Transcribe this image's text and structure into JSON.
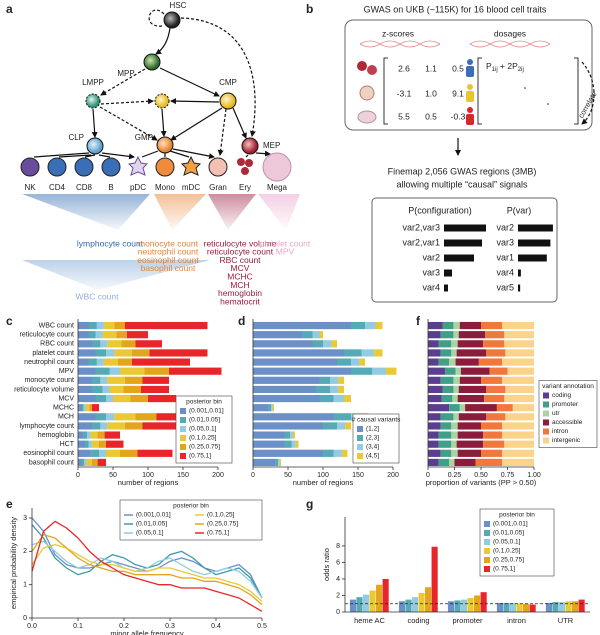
{
  "panel_labels": [
    "a",
    "b",
    "c",
    "d",
    "e",
    "f",
    "g"
  ],
  "panel_a": {
    "progenitors": [
      "HSC",
      "MPP",
      "LMPP",
      "CMP",
      "CLP",
      "GMP",
      "MEP"
    ],
    "cells": [
      "NK",
      "CD4",
      "CD8",
      "B",
      "pDC",
      "Mono",
      "mDC",
      "Gran",
      "Ery",
      "Mega"
    ],
    "trait_groups": [
      {
        "color": "#2e6ab3",
        "traits": [
          "lymphocyte count"
        ]
      },
      {
        "color": "#e8822f",
        "traits": [
          "monocyte count",
          "neutrophil count",
          "eosinophil count",
          "basophil count"
        ]
      },
      {
        "color": "#9b1b3c",
        "traits": [
          "reticulocyte volume",
          "reticulocyte count",
          "RBC count",
          "MCV",
          "MCHC",
          "MCH",
          "hemoglobin",
          "hematocrit"
        ]
      },
      {
        "color": "#e8a6cc",
        "traits": [
          "platelet count",
          "MPV"
        ]
      }
    ],
    "wbc_label": "WBC count",
    "wbc_color": "#8fb0d8"
  },
  "panel_b": {
    "title": "GWAS on UKB (~115K) for 16 blood cell traits",
    "zscore_header": "z-scores",
    "dosage_header": "dosages",
    "zscores": [
      [
        "2.6",
        "1.1",
        "0.5"
      ],
      [
        "-3.1",
        "1.0",
        "9.1"
      ],
      [
        "5.5",
        "0.5",
        "-0.3"
      ]
    ],
    "formula": [
      {
        "base": "P",
        "sub": "1ij"
      },
      {
        "base": " + 2P",
        "sub": "2ij"
      }
    ],
    "correlate": "correlate",
    "finemap_line1": "Finemap 2,056 GWAS regions (3MB)",
    "finemap_line2": "allowing multiple “causal” signals",
    "config_header": "P(configuration)",
    "var_header": "P(var)",
    "configs": [
      {
        "label": "var2,var3",
        "prob": 0.42
      },
      {
        "label": "var2,var1",
        "prob": 0.38
      },
      {
        "label": "var2",
        "prob": 0.3
      },
      {
        "label": "var3",
        "prob": 0.08
      },
      {
        "label": "var4",
        "prob": 0.04
      }
    ],
    "vars": [
      {
        "label": "var2",
        "prob": 0.97
      },
      {
        "label": "var3",
        "prob": 0.9
      },
      {
        "label": "var1",
        "prob": 0.8
      },
      {
        "label": "var4",
        "prob": 0.08
      },
      {
        "label": "var5",
        "prob": 0.06
      }
    ]
  },
  "chart_data": [
    {
      "type": "stacked_barh",
      "categories": [
        "WBC count",
        "reticulocyte count",
        "RBC count",
        "platelet count",
        "neutrophil count",
        "MPV",
        "monocyte count",
        "reticulocyte volume",
        "MCV",
        "MCHC",
        "MCH",
        "lymphocyte count",
        "hemoglobin",
        "HCT",
        "eosinophil count",
        "basophil count"
      ],
      "series": [
        {
          "name": "(0.001,0.01]",
          "color": "#6b8fc7",
          "values": [
            15,
            15,
            20,
            25,
            15,
            25,
            20,
            20,
            25,
            5,
            25,
            20,
            8,
            10,
            18,
            5
          ]
        },
        {
          "name": "(0.01,0.05]",
          "color": "#55aab5",
          "values": [
            12,
            10,
            12,
            15,
            12,
            20,
            12,
            15,
            15,
            3,
            15,
            12,
            5,
            5,
            12,
            4
          ]
        },
        {
          "name": "(0.05,0.1]",
          "color": "#93cbe3",
          "values": [
            10,
            10,
            10,
            12,
            10,
            15,
            10,
            10,
            10,
            3,
            12,
            10,
            5,
            5,
            10,
            3
          ]
        },
        {
          "name": "(0.1,0.25]",
          "color": "#ebc934",
          "values": [
            15,
            20,
            20,
            25,
            20,
            35,
            25,
            20,
            25,
            5,
            30,
            25,
            10,
            10,
            20,
            8
          ]
        },
        {
          "name": "(0.25,0.75]",
          "color": "#e3a51c",
          "values": [
            15,
            15,
            20,
            25,
            20,
            35,
            25,
            25,
            25,
            4,
            30,
            25,
            10,
            10,
            25,
            8
          ]
        },
        {
          "name": "(0.75,1]",
          "color": "#e8262a",
          "values": [
            118,
            30,
            38,
            83,
            83,
            75,
            38,
            40,
            40,
            10,
            53,
            48,
            22,
            25,
            50,
            12
          ]
        }
      ],
      "xlim": [
        0,
        200
      ],
      "xticks": [
        0,
        50,
        100,
        150,
        200
      ],
      "xlabel": "number of regions",
      "legend_title": "posterior bin",
      "legend": "lower right"
    },
    {
      "type": "stacked_barh",
      "series": [
        {
          "name": "(1,2]",
          "color": "#6b8fc7",
          "values": [
            140,
            70,
            85,
            130,
            120,
            140,
            95,
            90,
            95,
            22,
            115,
            100,
            45,
            45,
            100,
            32
          ]
        },
        {
          "name": "(2,3]",
          "color": "#55aab5",
          "values": [
            20,
            15,
            15,
            25,
            20,
            30,
            15,
            20,
            20,
            4,
            25,
            20,
            8,
            10,
            15,
            4
          ]
        },
        {
          "name": "(3,4]",
          "color": "#93cbe3",
          "values": [
            15,
            10,
            12,
            18,
            12,
            20,
            12,
            12,
            15,
            2,
            15,
            12,
            4,
            6,
            12,
            2
          ]
        },
        {
          "name": "(4,5]",
          "color": "#ebc934",
          "values": [
            10,
            5,
            8,
            12,
            8,
            15,
            8,
            8,
            10,
            2,
            10,
            8,
            3,
            4,
            8,
            2
          ]
        }
      ],
      "xlim": [
        0,
        200
      ],
      "xticks": [
        0,
        50,
        100,
        150,
        200
      ],
      "xlabel": "number of regions",
      "legend_title": "# causal variants",
      "legend": "lower right"
    },
    {
      "type": "stacked_barh",
      "series": [
        {
          "name": "coding",
          "color": "#5b3f8f",
          "values": [
            0.14,
            0.12,
            0.1,
            0.12,
            0.1,
            0.16,
            0.12,
            0.14,
            0.13,
            0.2,
            0.12,
            0.12,
            0.1,
            0.1,
            0.12,
            0.1
          ]
        },
        {
          "name": "promoter",
          "color": "#3f9f88",
          "values": [
            0.1,
            0.12,
            0.12,
            0.1,
            0.1,
            0.1,
            0.12,
            0.1,
            0.1,
            0.1,
            0.12,
            0.1,
            0.12,
            0.12,
            0.1,
            0.1
          ]
        },
        {
          "name": "utr",
          "color": "#a8d5a0",
          "values": [
            0.06,
            0.05,
            0.06,
            0.05,
            0.06,
            0.05,
            0.06,
            0.05,
            0.05,
            0.05,
            0.05,
            0.06,
            0.06,
            0.05,
            0.06,
            0.05
          ]
        },
        {
          "name": "accessible",
          "color": "#8c1c3c",
          "values": [
            0.2,
            0.25,
            0.24,
            0.28,
            0.22,
            0.27,
            0.2,
            0.26,
            0.25,
            0.3,
            0.26,
            0.22,
            0.24,
            0.25,
            0.22,
            0.2
          ]
        },
        {
          "name": "intron",
          "color": "#f0783c",
          "values": [
            0.2,
            0.18,
            0.2,
            0.18,
            0.22,
            0.17,
            0.2,
            0.18,
            0.19,
            0.15,
            0.18,
            0.2,
            0.18,
            0.2,
            0.2,
            0.25
          ]
        },
        {
          "name": "intergenic",
          "color": "#fbd38a",
          "values": [
            0.3,
            0.28,
            0.28,
            0.27,
            0.3,
            0.25,
            0.3,
            0.27,
            0.28,
            0.2,
            0.27,
            0.3,
            0.3,
            0.28,
            0.3,
            0.3
          ]
        }
      ],
      "xlim": [
        0,
        1
      ],
      "xticks": [
        0,
        0.25,
        {
          "value": 0.5,
          "label": "0.50"
        },
        0.75,
        {
          "value": 1,
          "label": "1.00"
        }
      ],
      "xlabel": "proportion of variants (PP > 0.50)",
      "legend_title": "variant annotation",
      "legend": "right"
    },
    {
      "type": "line",
      "x": [
        0,
        0.025,
        0.05,
        0.075,
        0.1,
        0.125,
        0.15,
        0.175,
        0.2,
        0.225,
        0.25,
        0.275,
        0.3,
        0.325,
        0.35,
        0.375,
        0.4,
        0.425,
        0.45,
        0.475,
        0.5
      ],
      "series": [
        {
          "name": "(0.001,0.01]",
          "color": "#6b8fc7",
          "values": [
            3.0,
            2.6,
            1.9,
            1.6,
            1.5,
            1.5,
            1.6,
            1.7,
            1.6,
            1.5,
            1.4,
            1.5,
            1.7,
            1.8,
            1.7,
            1.5,
            1.4,
            1.5,
            1.6,
            1.3,
            0.6
          ]
        },
        {
          "name": "(0.01,0.05]",
          "color": "#3f9aa8",
          "values": [
            2.8,
            2.4,
            1.8,
            1.5,
            1.3,
            1.4,
            1.7,
            1.9,
            1.8,
            1.6,
            1.5,
            1.6,
            1.9,
            2.0,
            1.8,
            1.5,
            1.3,
            1.4,
            1.5,
            1.2,
            0.6
          ]
        },
        {
          "name": "(0.05,0.1]",
          "color": "#93cbe3",
          "values": [
            2.2,
            2.3,
            2.0,
            1.7,
            1.5,
            1.6,
            1.8,
            1.7,
            1.5,
            1.4,
            1.5,
            1.7,
            1.8,
            1.6,
            1.4,
            1.3,
            1.4,
            1.5,
            1.4,
            1.1,
            0.6
          ]
        },
        {
          "name": "(0.1,0.25]",
          "color": "#ebc934",
          "values": [
            1.6,
            2.1,
            2.2,
            2.1,
            1.9,
            1.7,
            1.6,
            1.6,
            1.5,
            1.4,
            1.4,
            1.5,
            1.5,
            1.4,
            1.3,
            1.2,
            1.2,
            1.1,
            1.0,
            0.8,
            0.5
          ]
        },
        {
          "name": "(0.25,0.75]",
          "color": "#e3a51c",
          "values": [
            2.0,
            2.5,
            2.4,
            2.1,
            1.8,
            1.6,
            1.5,
            1.4,
            1.4,
            1.3,
            1.3,
            1.3,
            1.3,
            1.2,
            1.2,
            1.1,
            1.1,
            1.0,
            0.9,
            0.7,
            0.4
          ]
        },
        {
          "name": "(0.75,1]",
          "color": "#e8262a",
          "values": [
            1.4,
            2.6,
            2.9,
            2.7,
            2.4,
            2.0,
            1.7,
            1.5,
            1.3,
            1.2,
            1.1,
            1.0,
            1.0,
            0.9,
            0.9,
            0.9,
            0.8,
            0.7,
            0.6,
            0.4,
            0.2
          ]
        }
      ],
      "xlim": [
        0,
        0.5
      ],
      "xticks": [
        {
          "value": 0,
          "label": "0.0"
        },
        0.1,
        0.2,
        0.3,
        0.4,
        0.5
      ],
      "ylim": [
        0,
        3.3
      ],
      "yticks": [
        0,
        1,
        2,
        3
      ],
      "xlabel": "minor allele frequency",
      "ylabel": "empirical probability density",
      "legend_title": "posterior bin",
      "legend": "upper right"
    },
    {
      "type": "bar",
      "categories": [
        "heme AC",
        "coding",
        "promoter",
        "intron",
        "UTR"
      ],
      "series": [
        {
          "name": "(0.001,0.01]",
          "color": "#6b8fc7",
          "values": [
            1.5,
            1.3,
            1.3,
            1.1,
            1.1
          ]
        },
        {
          "name": "(0.01,0.05]",
          "color": "#55aab5",
          "values": [
            1.8,
            1.5,
            1.4,
            1.1,
            1.2
          ]
        },
        {
          "name": "(0.05,0.1]",
          "color": "#93cbe3",
          "values": [
            2.1,
            1.8,
            1.5,
            1.1,
            1.2
          ]
        },
        {
          "name": "(0.1,0.25]",
          "color": "#ebc934",
          "values": [
            2.6,
            2.3,
            1.7,
            1.05,
            1.3
          ]
        },
        {
          "name": "(0.25,0.75]",
          "color": "#e3a51c",
          "values": [
            3.3,
            3.0,
            2.0,
            1.0,
            1.3
          ]
        },
        {
          "name": "(0.75,1]",
          "color": "#e8262a",
          "values": [
            4.0,
            7.9,
            2.4,
            0.9,
            1.5
          ]
        }
      ],
      "ylim": [
        0,
        11.5
      ],
      "yticks": [
        0,
        2,
        4,
        6,
        8
      ],
      "ylabel": "odds ratio",
      "reference_line": 1,
      "legend_title": "posterior bin",
      "legend": "upper right"
    }
  ]
}
